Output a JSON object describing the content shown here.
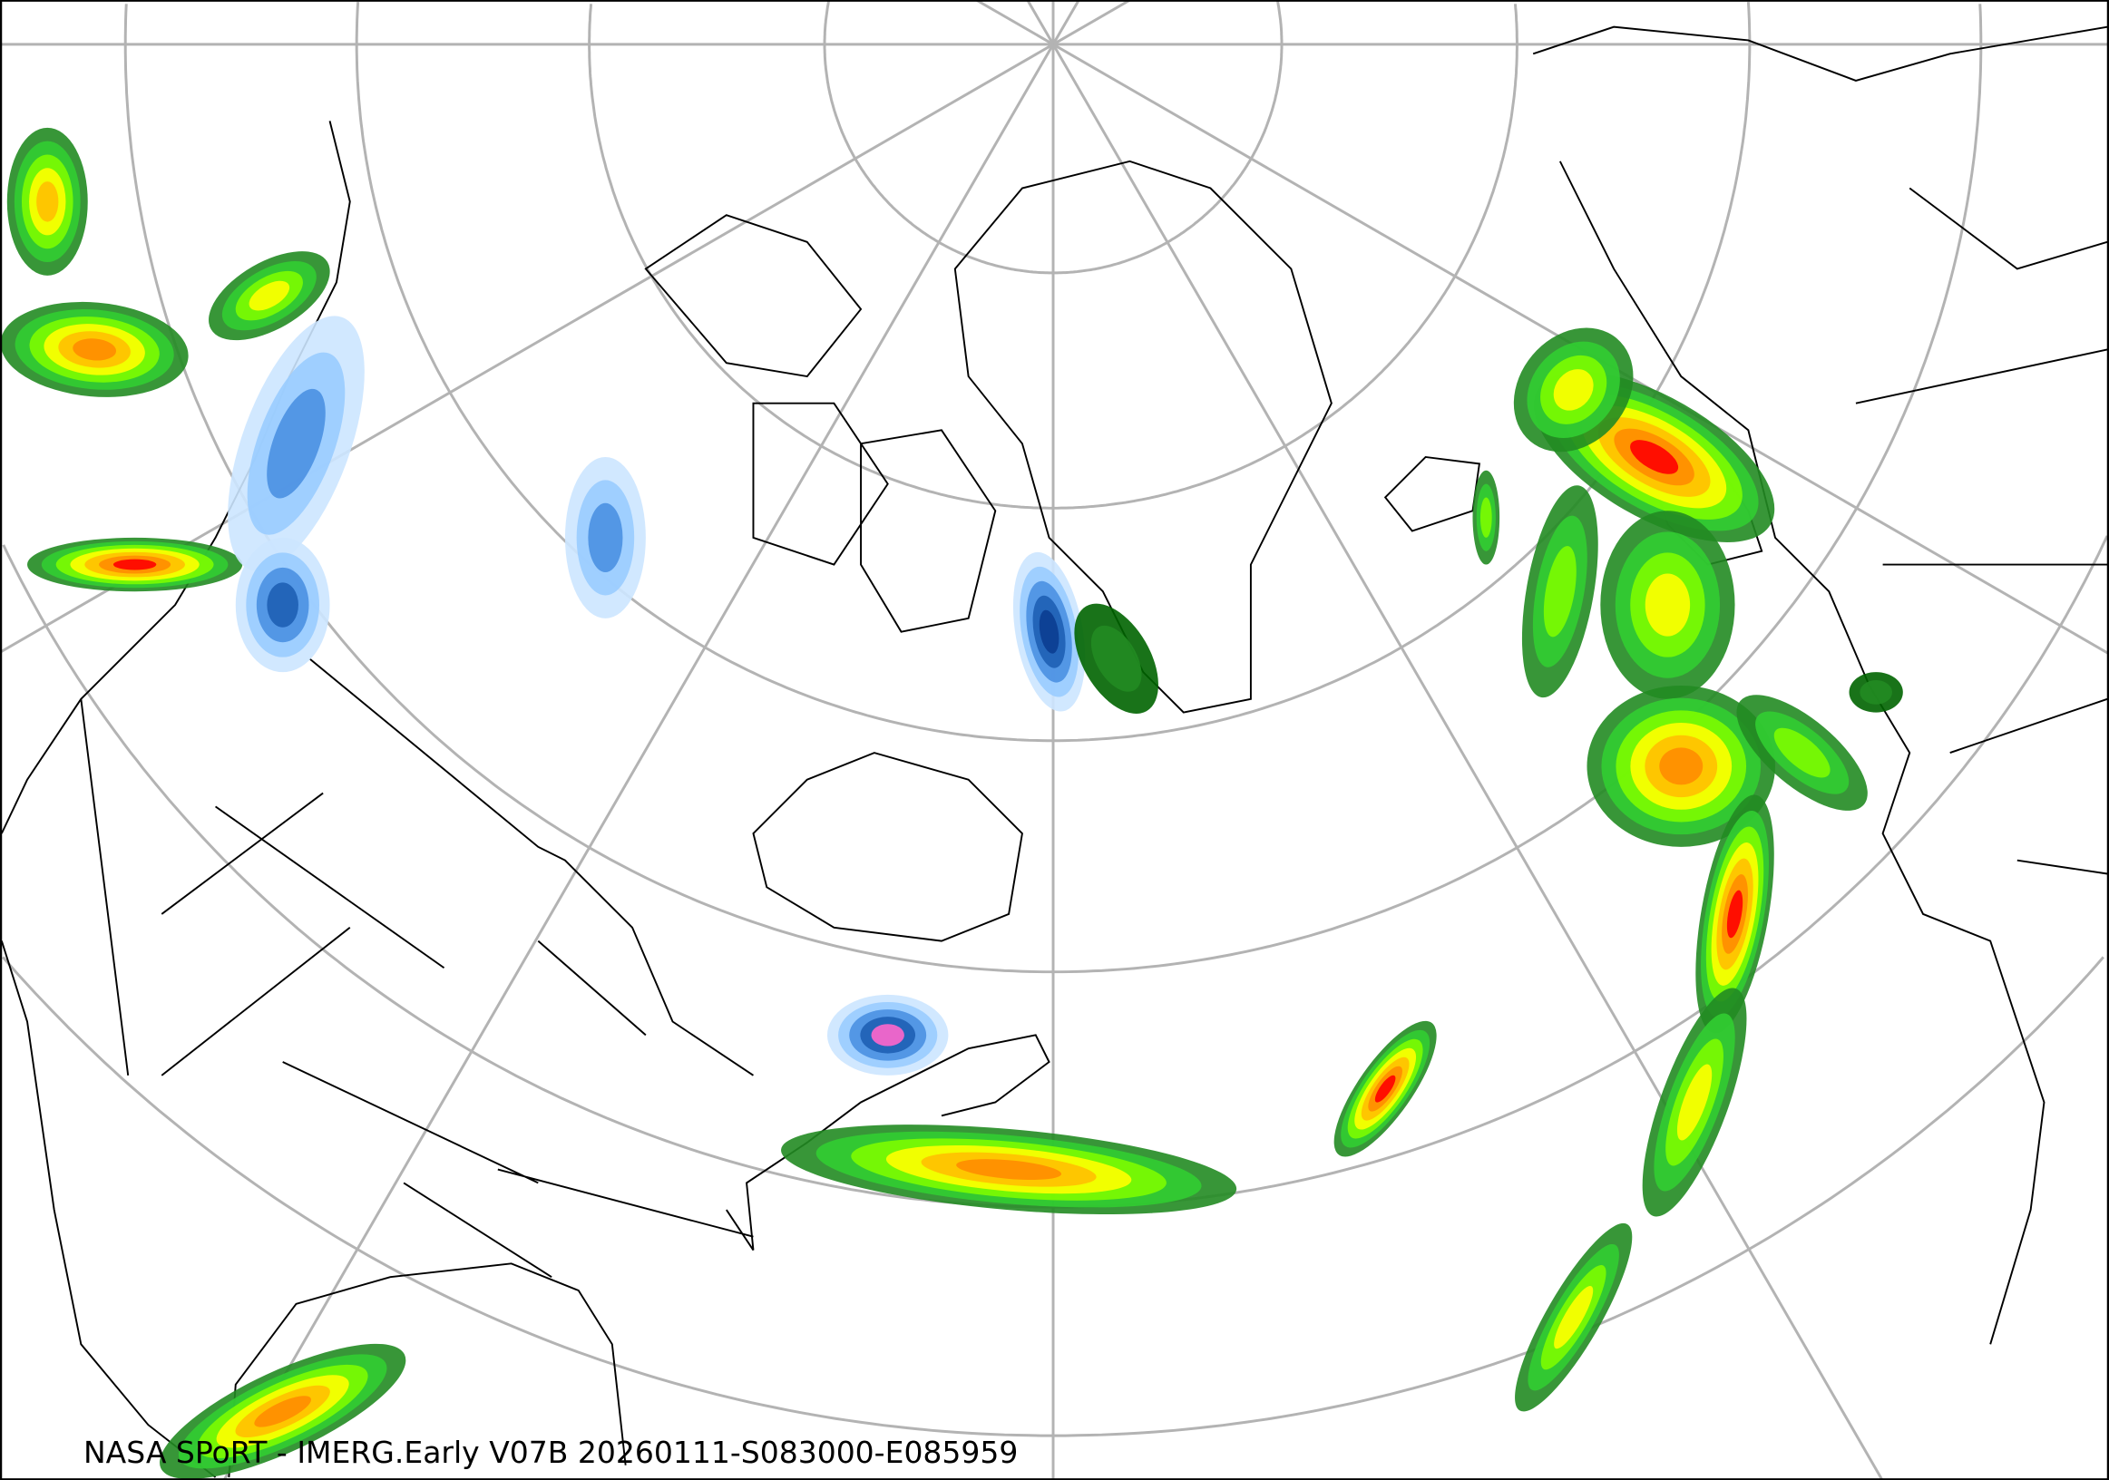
{
  "caption": "NASA SPoRT - IMERG.Early V07B 20260111-S083000-E085959",
  "map": {
    "projection": "north-polar stereographic",
    "graticule_color": "#b3b3b3",
    "border_color": "#000000",
    "background": "#ffffff"
  },
  "precip_colors": {
    "rain": [
      "#006400",
      "#228b22",
      "#32cd32",
      "#7cfc00",
      "#ffff00",
      "#ffc000",
      "#ff8c00",
      "#ff0000"
    ],
    "snow": [
      "#cce5ff",
      "#99ccff",
      "#4a90e2",
      "#1e5fb4",
      "#0b3d91",
      "#ff66cc"
    ]
  }
}
